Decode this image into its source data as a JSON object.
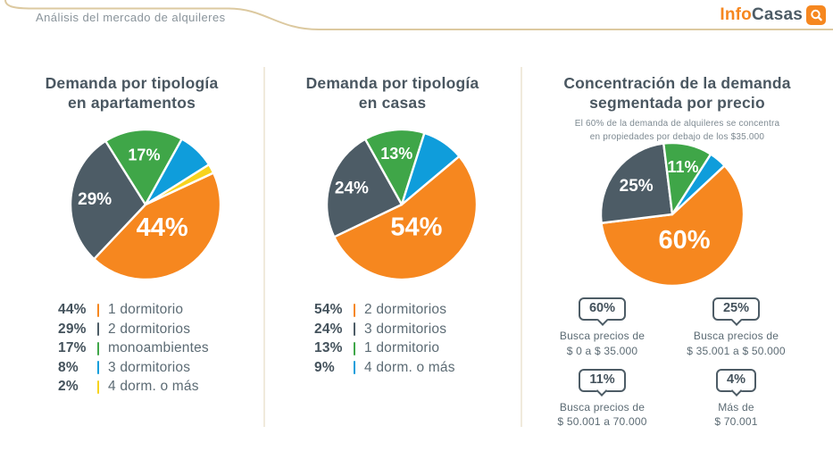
{
  "header": {
    "title": "Análisis del mercado de alquileres",
    "logo": {
      "part1": "Info",
      "part2": "Casas"
    }
  },
  "colors": {
    "orange": "#F6871F",
    "slate": "#4D5C66",
    "green": "#3FA648",
    "blue": "#0F9DDB",
    "yellow": "#F7D31E",
    "accent_line": "#DCC9A0",
    "divider": "#F0EADC",
    "title_text": "#4A5761",
    "body_text": "#5C6B74"
  },
  "chart_data": [
    {
      "type": "pie",
      "title_lines": [
        "Demanda por tipología",
        "en apartamentos"
      ],
      "radius": 84,
      "start_angle": 65,
      "legend_position": "bottom-left",
      "slices": [
        {
          "label": "1 dormitorio",
          "value": 44,
          "color_key": "orange",
          "pct_font": 29,
          "pct_dist": 0.38
        },
        {
          "label": "2 dormitorios",
          "value": 29,
          "color_key": "slate",
          "pct_font": 19,
          "pct_dist": 0.68
        },
        {
          "label": "monoambientes",
          "value": 17,
          "color_key": "green",
          "pct_font": 18,
          "pct_dist": 0.66
        },
        {
          "label": "3 dormitorios",
          "value": 8,
          "color_key": "blue"
        },
        {
          "label": "4 dorm. o más",
          "value": 2,
          "color_key": "yellow"
        }
      ],
      "legend": true
    },
    {
      "type": "pie",
      "title_lines": [
        "Demanda por tipología",
        "en casas"
      ],
      "radius": 84,
      "start_angle": 50,
      "legend_position": "bottom-left",
      "slices": [
        {
          "label": "2 dormitorios",
          "value": 54,
          "color_key": "orange",
          "pct_font": 29,
          "pct_dist": 0.36
        },
        {
          "label": "3 dormitorios",
          "value": 24,
          "color_key": "slate",
          "pct_font": 19,
          "pct_dist": 0.7
        },
        {
          "label": "1 dormitorio",
          "value": 13,
          "color_key": "green",
          "pct_font": 18,
          "pct_dist": 0.68
        },
        {
          "label": "4 dorm. o más",
          "value": 9,
          "color_key": "blue"
        }
      ],
      "legend": true
    },
    {
      "type": "pie",
      "title_lines": [
        "Concentración de la demanda",
        "segmentada por precio"
      ],
      "subtitle_lines": [
        "El 60% de la demanda de alquileres se concentra",
        "en propiedades por debajo de los $35.000"
      ],
      "radius": 80,
      "start_angle": 47,
      "slices": [
        {
          "label": "$ 0 a $ 35.000",
          "value": 60,
          "color_key": "orange",
          "pct_font": 29,
          "pct_dist": 0.4
        },
        {
          "label": "$ 35.001 a $ 50.000",
          "value": 25,
          "color_key": "slate",
          "pct_font": 19,
          "pct_dist": 0.64
        },
        {
          "label": "$ 50.001 a 70.000",
          "value": 11,
          "color_key": "green",
          "pct_font": 18,
          "pct_dist": 0.68
        },
        {
          "label": "Más de $ 70.001",
          "value": 4,
          "color_key": "blue"
        }
      ],
      "legend": false,
      "badges": [
        {
          "pct": "60%",
          "lines": [
            "Busca precios de",
            "$ 0 a $ 35.000"
          ]
        },
        {
          "pct": "25%",
          "lines": [
            "Busca precios de",
            "$ 35.001 a $ 50.000"
          ]
        },
        {
          "pct": "11%",
          "lines": [
            "Busca precios de",
            "$ 50.001 a 70.000"
          ]
        },
        {
          "pct": "4%",
          "lines": [
            "Más de",
            "$ 70.001"
          ]
        }
      ]
    }
  ]
}
